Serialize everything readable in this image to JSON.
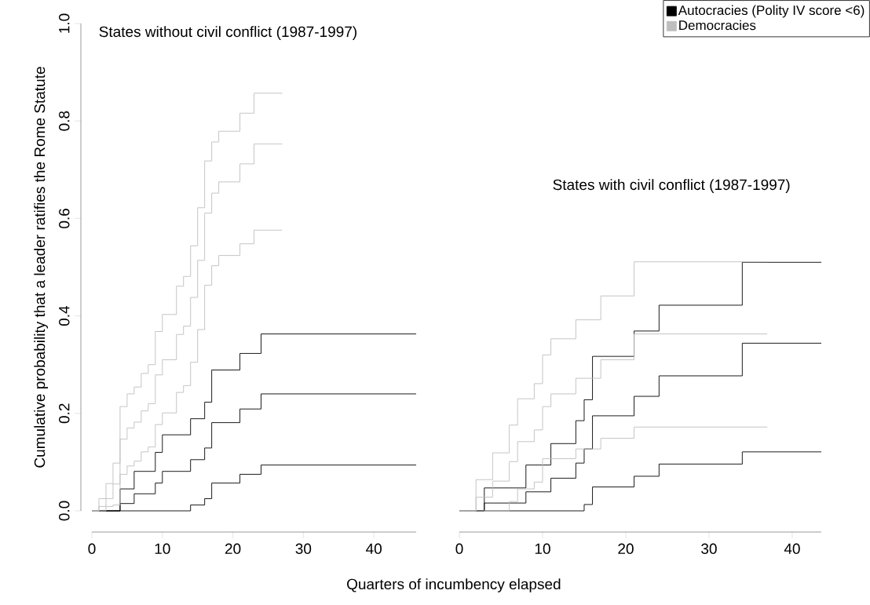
{
  "chart_data": [
    {
      "type": "step",
      "title": "States without civil conflict (1987-1997)",
      "xlabel": "Quarters of incumbency elapsed",
      "ylabel": "Cumulative probability that a leader ratifies the Rome Statute",
      "xlim": [
        0,
        46
      ],
      "ylim": [
        0,
        1
      ],
      "xticks": [
        0,
        10,
        20,
        30,
        40
      ],
      "yticks": [
        {
          "value": 0,
          "label": "0.0"
        },
        {
          "value": 0.2,
          "label": "0.2"
        },
        {
          "value": 0.4,
          "label": "0.4"
        },
        {
          "value": 0.6,
          "label": "0.6"
        },
        {
          "value": 0.8,
          "label": "0.8"
        },
        {
          "value": 1,
          "label": "1.0"
        }
      ],
      "grid": false,
      "marker": "none",
      "line_style": "solid",
      "series": [
        {
          "color": "#000000",
          "x": [
            0,
            4,
            6,
            9,
            10,
            14,
            16,
            17,
            21,
            24,
            46
          ],
          "values": [
            0,
            0.045,
            0.081,
            0.12,
            0.156,
            0.189,
            0.223,
            0.289,
            0.323,
            0.363,
            0.363
          ]
        },
        {
          "color": "#000000",
          "x": [
            0,
            4,
            6,
            9,
            10,
            14,
            16,
            17,
            21,
            24,
            46
          ],
          "values": [
            0,
            0.015,
            0.035,
            0.057,
            0.081,
            0.105,
            0.129,
            0.181,
            0.209,
            0.24,
            0.24
          ]
        },
        {
          "color": "#000000",
          "x": [
            0,
            14,
            16,
            17,
            21,
            24,
            46
          ],
          "values": [
            0,
            0.012,
            0.025,
            0.057,
            0.075,
            0.094,
            0.094
          ]
        },
        {
          "color": "#bebebe",
          "x": [
            0,
            1,
            2,
            3,
            4,
            5,
            6,
            7,
            8,
            9,
            10,
            12,
            13,
            14,
            15,
            16,
            17,
            18,
            21,
            23,
            27
          ],
          "values": [
            0,
            0.025,
            0.056,
            0.098,
            0.214,
            0.24,
            0.254,
            0.282,
            0.3,
            0.368,
            0.403,
            0.461,
            0.481,
            0.544,
            0.622,
            0.718,
            0.757,
            0.779,
            0.816,
            0.857,
            0.857
          ]
        },
        {
          "color": "#bebebe",
          "x": [
            0,
            1,
            2,
            3,
            4,
            5,
            6,
            7,
            8,
            9,
            10,
            12,
            13,
            14,
            15,
            16,
            17,
            18,
            21,
            23,
            27
          ],
          "values": [
            0,
            0.009,
            0.025,
            0.055,
            0.147,
            0.17,
            0.182,
            0.205,
            0.22,
            0.279,
            0.31,
            0.362,
            0.379,
            0.438,
            0.514,
            0.611,
            0.652,
            0.675,
            0.712,
            0.753,
            0.753
          ]
        },
        {
          "color": "#bebebe",
          "x": [
            0,
            2,
            3,
            4,
            5,
            6,
            7,
            8,
            9,
            10,
            12,
            13,
            14,
            15,
            16,
            17,
            18,
            21,
            23,
            27
          ],
          "values": [
            0,
            0.009,
            0.012,
            0.075,
            0.092,
            0.102,
            0.121,
            0.131,
            0.177,
            0.201,
            0.243,
            0.257,
            0.305,
            0.372,
            0.463,
            0.503,
            0.524,
            0.548,
            0.576,
            0.576
          ]
        }
      ]
    },
    {
      "type": "step",
      "title": "States with civil conflict (1987-1997)",
      "xlim": [
        0,
        43.5
      ],
      "ylim": [
        0,
        1
      ],
      "xticks": [
        0,
        10,
        20,
        30,
        40
      ],
      "tick_labels": "x",
      "grid": false,
      "marker": "none",
      "line_style": "solid",
      "legend": "top right",
      "series": [
        {
          "color": "#000000",
          "x": [
            0,
            3,
            8,
            11,
            14,
            15,
            16,
            21,
            24,
            34,
            43.5
          ],
          "values": [
            0,
            0.047,
            0.094,
            0.138,
            0.185,
            0.228,
            0.317,
            0.369,
            0.422,
            0.51,
            0.51
          ]
        },
        {
          "name": "Autocracies (Polity IV score <6)",
          "color": "#000000",
          "x": [
            0,
            3,
            8,
            11,
            14,
            15,
            16,
            21,
            24,
            34,
            43.5
          ],
          "values": [
            0,
            0.016,
            0.039,
            0.067,
            0.098,
            0.127,
            0.195,
            0.235,
            0.277,
            0.344,
            0.344
          ]
        },
        {
          "color": "#000000",
          "x": [
            0,
            15,
            16,
            21,
            24,
            34,
            43.5
          ],
          "values": [
            0,
            0.013,
            0.049,
            0.071,
            0.096,
            0.121,
            0.121
          ]
        },
        {
          "color": "#bebebe",
          "x": [
            0,
            2,
            4,
            6,
            7,
            9,
            10,
            11,
            14,
            17,
            21,
            37
          ],
          "values": [
            0,
            0.064,
            0.119,
            0.176,
            0.23,
            0.261,
            0.32,
            0.353,
            0.392,
            0.441,
            0.511,
            0.511
          ]
        },
        {
          "name": "Democracies",
          "color": "#bebebe",
          "x": [
            0,
            2,
            4,
            6,
            7,
            9,
            10,
            11,
            14,
            17,
            21,
            37
          ],
          "values": [
            0,
            0.028,
            0.061,
            0.101,
            0.142,
            0.166,
            0.214,
            0.24,
            0.272,
            0.31,
            0.363,
            0.363
          ]
        },
        {
          "color": "#bebebe",
          "x": [
            0,
            6,
            7,
            9,
            10,
            14,
            17,
            21,
            37
          ],
          "values": [
            0,
            0.019,
            0.045,
            0.059,
            0.107,
            0.127,
            0.149,
            0.172,
            0.172
          ]
        }
      ]
    }
  ]
}
